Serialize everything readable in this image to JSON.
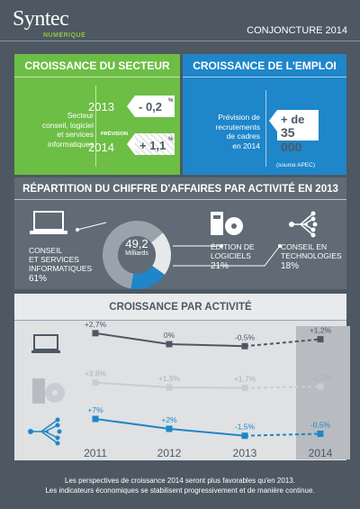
{
  "header": {
    "logo_main": "Syntec",
    "logo_sub": "NUMÉRIQUE",
    "period": "CONJONCTURE 2014"
  },
  "sector_growth": {
    "title": "CROISSANCE DU SECTEUR",
    "description_lines": [
      "Secteur",
      "conseil, logiciel",
      "et services",
      "informatiques"
    ],
    "rows": [
      {
        "prefix": "",
        "year": "2013",
        "value": "- 0,2",
        "unit": "%"
      },
      {
        "prefix": "PRÉVISION",
        "year": "2014",
        "value": "+ 1,1",
        "unit": "%"
      }
    ]
  },
  "employment_growth": {
    "title": "CROISSANCE DE L'EMPLOI",
    "description_lines": [
      "Prévision de",
      "recrutements",
      "de cadres",
      "en 2014"
    ],
    "value_line1": "+ de",
    "value_line2": "35 000",
    "source": "(source APEC)"
  },
  "revenue_breakdown": {
    "title": "RÉPARTITION DU CHIFFRE D'AFFAIRES PAR ACTIVITÉ EN 2013",
    "total_value": "49,2",
    "total_unit": "Milliards",
    "categories": [
      {
        "lines": [
          "CONSEIL",
          "ET SERVICES",
          "INFORMATIQUES"
        ],
        "percent": "61%"
      },
      {
        "lines": [
          "ÉDITION DE",
          "LOGICIELS"
        ],
        "percent": "21%"
      },
      {
        "lines": [
          "CONSEIL EN",
          "TECHNOLOGIES"
        ],
        "percent": "18%"
      }
    ]
  },
  "chart_data": [
    {
      "type": "pie",
      "title": "RÉPARTITION DU CHIFFRE D'AFFAIRES PAR ACTIVITÉ EN 2013",
      "center_label": "49,2 Milliards",
      "categories": [
        "CONSEIL ET SERVICES INFORMATIQUES",
        "ÉDITION DE LOGICIELS",
        "CONSEIL EN TECHNOLOGIES"
      ],
      "values": [
        61,
        21,
        18
      ],
      "colors": [
        "#9aa3ab",
        "#e6e8ea",
        "#1e86c9"
      ]
    },
    {
      "type": "line",
      "title": "CROISSANCE PAR ACTIVITÉ",
      "x": [
        "2011",
        "2012",
        "2013",
        "2014"
      ],
      "series": [
        {
          "values": [
            2.7,
            0,
            -0.5,
            1.2
          ],
          "labels": [
            "+2,7%",
            "0%",
            "-0,5%",
            "+1,2%"
          ],
          "color": "#4d5863"
        },
        {
          "values": [
            3.8,
            1.9,
            1.7,
            2.2
          ],
          "labels": [
            "+3,8%",
            "+1,9%",
            "+1,7%",
            "+2,2%"
          ],
          "color": "#c9cdd1"
        },
        {
          "values": [
            7,
            2,
            -1.5,
            -0.5
          ],
          "labels": [
            "+7%",
            "+2%",
            "-1,5%",
            "-0,5%"
          ],
          "color": "#1e86c9"
        }
      ],
      "forecast_from": "2013"
    }
  ],
  "footer": {
    "line1": "Les perspectives de croissance 2014 seront plus favorables qu'en 2013.",
    "line2": "Les indicateurs économiques se stabilisent progressivement et de manière continue."
  }
}
